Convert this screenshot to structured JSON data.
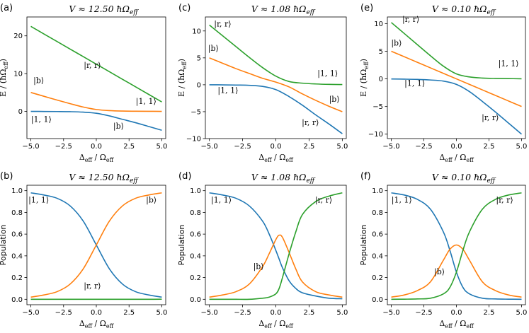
{
  "colors": {
    "blue": "#1f77b4",
    "orange": "#ff7f0e",
    "green": "#2ca02c",
    "axis": "#000000"
  },
  "chart_data": [
    {
      "panel": "(a)",
      "type": "line",
      "title": "V ≈ 12.50 ħΩ_eff",
      "xlabel": "Δ_eff / Ω_eff",
      "ylabel": "E / (ħΩ_eff)",
      "xlim": [
        -5.3,
        5.3
      ],
      "ylim": [
        -7.2,
        25.0
      ],
      "xticks": [
        -5,
        -2.5,
        0,
        2.5,
        5
      ],
      "xtick_labels": [
        "−5.0",
        "−2.5",
        "0.0",
        "2.5",
        "5.0"
      ],
      "yticks": [
        0,
        10,
        20
      ],
      "ytick_labels": [
        "0",
        "10",
        "20"
      ],
      "x": [
        -5,
        -4,
        -3,
        -2,
        -1,
        0,
        1,
        2,
        3,
        4,
        5
      ],
      "series": [
        {
          "color": "#2ca02c",
          "values": [
            22.5,
            20.5,
            18.5,
            16.5,
            14.5,
            12.5,
            10.5,
            8.5,
            6.5,
            4.5,
            2.5
          ]
        },
        {
          "color": "#ff7f0e",
          "values": [
            5.0,
            4.0,
            3.0,
            2.05,
            1.15,
            0.5,
            0.2,
            0.08,
            0.04,
            0.02,
            0.0
          ]
        },
        {
          "color": "#1f77b4",
          "values": [
            0.0,
            -0.02,
            -0.04,
            -0.08,
            -0.2,
            -0.5,
            -1.2,
            -2.1,
            -3.0,
            -4.0,
            -5.0
          ]
        }
      ],
      "annotations": [
        {
          "text": "|r, r⟩",
          "x": -0.3,
          "y": 11.5
        },
        {
          "text": "|b⟩",
          "x": -4.4,
          "y": 7.5
        },
        {
          "text": "|1, 1⟩",
          "x": 3.8,
          "y": 2.0
        },
        {
          "text": "|1, 1⟩",
          "x": -4.2,
          "y": -2.8
        },
        {
          "text": "|b⟩",
          "x": 1.7,
          "y": -4.6
        }
      ]
    },
    {
      "panel": "(c)",
      "type": "line",
      "title": "V ≈ 1.08 ħΩ_eff",
      "xlabel": "Δ_eff / Ω_eff",
      "ylabel": "E / (ħΩ_eff)",
      "xlim": [
        -5.3,
        5.3
      ],
      "ylim": [
        -10.0,
        12.6
      ],
      "xticks": [
        -5,
        -2.5,
        0,
        2.5,
        5
      ],
      "xtick_labels": [
        "−5.0",
        "−2.5",
        "0.0",
        "2.5",
        "5.0"
      ],
      "yticks": [
        -10,
        -5,
        0,
        5,
        10
      ],
      "ytick_labels": [
        "−10",
        "−5",
        "0",
        "5",
        "10"
      ],
      "x": [
        -5,
        -4,
        -3,
        -2,
        -1,
        0,
        1,
        2,
        3,
        4,
        5
      ],
      "series": [
        {
          "color": "#2ca02c",
          "values": [
            11.1,
            9.1,
            7.1,
            5.1,
            3.2,
            1.6,
            0.6,
            0.3,
            0.15,
            0.07,
            0.04
          ]
        },
        {
          "color": "#ff7f0e",
          "values": [
            5.0,
            4.0,
            3.0,
            2.1,
            1.2,
            0.5,
            -0.4,
            -1.7,
            -2.9,
            -4.0,
            -5.0
          ]
        },
        {
          "color": "#1f77b4",
          "values": [
            0.0,
            -0.02,
            -0.05,
            -0.1,
            -0.3,
            -0.9,
            -2.2,
            -3.8,
            -5.6,
            -7.3,
            -9.1
          ]
        }
      ],
      "annotations": [
        {
          "text": "|r, r⟩",
          "x": -4.0,
          "y": 10.8
        },
        {
          "text": "|b⟩",
          "x": -4.7,
          "y": 6.3
        },
        {
          "text": "|1, 1⟩",
          "x": 3.9,
          "y": 1.6
        },
        {
          "text": "|1, 1⟩",
          "x": -3.6,
          "y": -1.5
        },
        {
          "text": "|b⟩",
          "x": 4.4,
          "y": -3.2
        },
        {
          "text": "|r, r⟩",
          "x": 2.6,
          "y": -7.5
        }
      ]
    },
    {
      "panel": "(e)",
      "type": "line",
      "title": "V ≈ 0.10 ħΩ_eff",
      "xlabel": "Δ_eff / Ω_eff",
      "ylabel": "E / (ħΩ_eff)",
      "xlim": [
        -5.3,
        5.3
      ],
      "ylim": [
        -10.8,
        11.2
      ],
      "xticks": [
        -5,
        -2.5,
        0,
        2.5,
        5
      ],
      "xtick_labels": [
        "−5.0",
        "−2.5",
        "0.0",
        "2.5",
        "5.0"
      ],
      "yticks": [
        -10,
        -5,
        0,
        5,
        10
      ],
      "ytick_labels": [
        "−10",
        "−5",
        "0",
        "5",
        "10"
      ],
      "x": [
        -5,
        -4,
        -3,
        -2,
        -1,
        0,
        1,
        2,
        3,
        4,
        5
      ],
      "series": [
        {
          "color": "#2ca02c",
          "values": [
            10.2,
            8.2,
            6.2,
            4.2,
            2.3,
            0.9,
            0.35,
            0.15,
            0.08,
            0.05,
            0.02
          ]
        },
        {
          "color": "#ff7f0e",
          "values": [
            5.0,
            4.0,
            3.0,
            2.0,
            1.0,
            0.0,
            -1.0,
            -2.0,
            -3.0,
            -4.0,
            -5.0
          ]
        },
        {
          "color": "#1f77b4",
          "values": [
            -0.02,
            -0.05,
            -0.1,
            -0.2,
            -0.4,
            -1.0,
            -2.3,
            -4.1,
            -6.0,
            -8.0,
            -10.0
          ]
        }
      ],
      "annotations": [
        {
          "text": "|r, r⟩",
          "x": -3.5,
          "y": 10.3
        },
        {
          "text": "|b⟩",
          "x": -4.6,
          "y": 6.0
        },
        {
          "text": "|1, 1⟩",
          "x": 4.0,
          "y": 2.3
        },
        {
          "text": "|1, 1⟩",
          "x": -3.2,
          "y": -1.3
        },
        {
          "text": "|r, r⟩",
          "x": 2.6,
          "y": -7.5
        }
      ]
    },
    {
      "panel": "(b)",
      "type": "line",
      "title": "V ≈ 12.50 ħΩ_eff",
      "xlabel": "Δ_eff / Ω_eff",
      "ylabel": "Population",
      "xlim": [
        -5.3,
        5.3
      ],
      "ylim": [
        -0.05,
        1.05
      ],
      "xticks": [
        -5,
        -2.5,
        0,
        2.5,
        5
      ],
      "xtick_labels": [
        "−5.0",
        "−2.5",
        "0.0",
        "2.5",
        "5.0"
      ],
      "yticks": [
        0,
        0.2,
        0.4,
        0.6,
        0.8,
        1.0
      ],
      "ytick_labels": [
        "0.0",
        "0.2",
        "0.4",
        "0.6",
        "0.8",
        "1.0"
      ],
      "x": [
        -5,
        -4,
        -3,
        -2,
        -1,
        0,
        1,
        2,
        3,
        4,
        5
      ],
      "series": [
        {
          "color": "#1f77b4",
          "values": [
            0.98,
            0.96,
            0.93,
            0.86,
            0.72,
            0.5,
            0.28,
            0.14,
            0.07,
            0.04,
            0.02
          ]
        },
        {
          "color": "#ff7f0e",
          "values": [
            0.02,
            0.04,
            0.07,
            0.14,
            0.28,
            0.5,
            0.72,
            0.86,
            0.93,
            0.96,
            0.98
          ]
        },
        {
          "color": "#2ca02c",
          "values": [
            0.0,
            0.0,
            0.0,
            0.0,
            0.0,
            0.0,
            0.0,
            0.0,
            0.0,
            0.0,
            0.001
          ]
        }
      ],
      "annotations": [
        {
          "text": "|1, 1⟩",
          "x": -4.4,
          "y": 0.89
        },
        {
          "text": "|b⟩",
          "x": 4.2,
          "y": 0.89
        },
        {
          "text": "|r, r⟩",
          "x": -0.3,
          "y": 0.1
        }
      ]
    },
    {
      "panel": "(d)",
      "type": "line",
      "title": "V ≈ 1.08 ħΩ_eff",
      "xlabel": "Δ_eff / Ω_eff",
      "ylabel": "Population",
      "xlim": [
        -5.3,
        5.3
      ],
      "ylim": [
        -0.05,
        1.05
      ],
      "xticks": [
        -5,
        -2.5,
        0,
        2.5,
        5
      ],
      "xtick_labels": [
        "−5.0",
        "−2.5",
        "0.0",
        "2.5",
        "5.0"
      ],
      "yticks": [
        0,
        0.2,
        0.4,
        0.6,
        0.8,
        1.0
      ],
      "ytick_labels": [
        "0.0",
        "0.2",
        "0.4",
        "0.6",
        "0.8",
        "1.0"
      ],
      "x": [
        -5,
        -4,
        -3,
        -2,
        -1,
        -0.5,
        0,
        0.25,
        0.5,
        1,
        1.5,
        2,
        3,
        4,
        5
      ],
      "series": [
        {
          "color": "#1f77b4",
          "values": [
            0.98,
            0.96,
            0.93,
            0.86,
            0.72,
            0.6,
            0.45,
            0.37,
            0.29,
            0.17,
            0.1,
            0.06,
            0.03,
            0.01,
            0.005
          ]
        },
        {
          "color": "#ff7f0e",
          "values": [
            0.02,
            0.04,
            0.07,
            0.14,
            0.3,
            0.42,
            0.55,
            0.59,
            0.57,
            0.43,
            0.28,
            0.16,
            0.07,
            0.04,
            0.02
          ]
        },
        {
          "color": "#2ca02c",
          "values": [
            0.0,
            0.0,
            0.0,
            0.0,
            0.01,
            0.02,
            0.05,
            0.1,
            0.2,
            0.42,
            0.62,
            0.78,
            0.9,
            0.95,
            0.98
          ]
        }
      ],
      "annotations": [
        {
          "text": "|1, 1⟩",
          "x": -4.1,
          "y": 0.89
        },
        {
          "text": "|r, r⟩",
          "x": 3.6,
          "y": 0.89
        },
        {
          "text": "|b⟩",
          "x": -1.3,
          "y": 0.28
        }
      ]
    },
    {
      "panel": "(f)",
      "type": "line",
      "title": "V ≈ 0.10 ħΩ_eff",
      "xlabel": "Δ_eff / Ω_eff",
      "ylabel": "Population",
      "xlim": [
        -5.3,
        5.3
      ],
      "ylim": [
        -0.05,
        1.05
      ],
      "xticks": [
        -5,
        -2.5,
        0,
        2.5,
        5
      ],
      "xtick_labels": [
        "−5.0",
        "−2.5",
        "0.0",
        "2.5",
        "5.0"
      ],
      "yticks": [
        0,
        0.2,
        0.4,
        0.6,
        0.8,
        1.0
      ],
      "ytick_labels": [
        "0.0",
        "0.2",
        "0.4",
        "0.6",
        "0.8",
        "1.0"
      ],
      "x": [
        -5,
        -4,
        -3,
        -2,
        -1,
        -0.5,
        0,
        0.5,
        1,
        2,
        3,
        4,
        5
      ],
      "series": [
        {
          "color": "#1f77b4",
          "values": [
            0.98,
            0.96,
            0.92,
            0.83,
            0.62,
            0.45,
            0.25,
            0.11,
            0.05,
            0.01,
            0.003,
            0.001,
            0.0
          ]
        },
        {
          "color": "#ff7f0e",
          "values": [
            0.02,
            0.04,
            0.08,
            0.16,
            0.36,
            0.46,
            0.5,
            0.46,
            0.36,
            0.16,
            0.08,
            0.04,
            0.02
          ]
        },
        {
          "color": "#2ca02c",
          "values": [
            0.0,
            0.001,
            0.003,
            0.01,
            0.05,
            0.11,
            0.25,
            0.45,
            0.62,
            0.83,
            0.92,
            0.96,
            0.98
          ]
        }
      ],
      "annotations": [
        {
          "text": "|1, 1⟩",
          "x": -4.2,
          "y": 0.89
        },
        {
          "text": "|r, r⟩",
          "x": 3.7,
          "y": 0.89
        },
        {
          "text": "|b⟩",
          "x": -1.3,
          "y": 0.23
        }
      ]
    }
  ]
}
